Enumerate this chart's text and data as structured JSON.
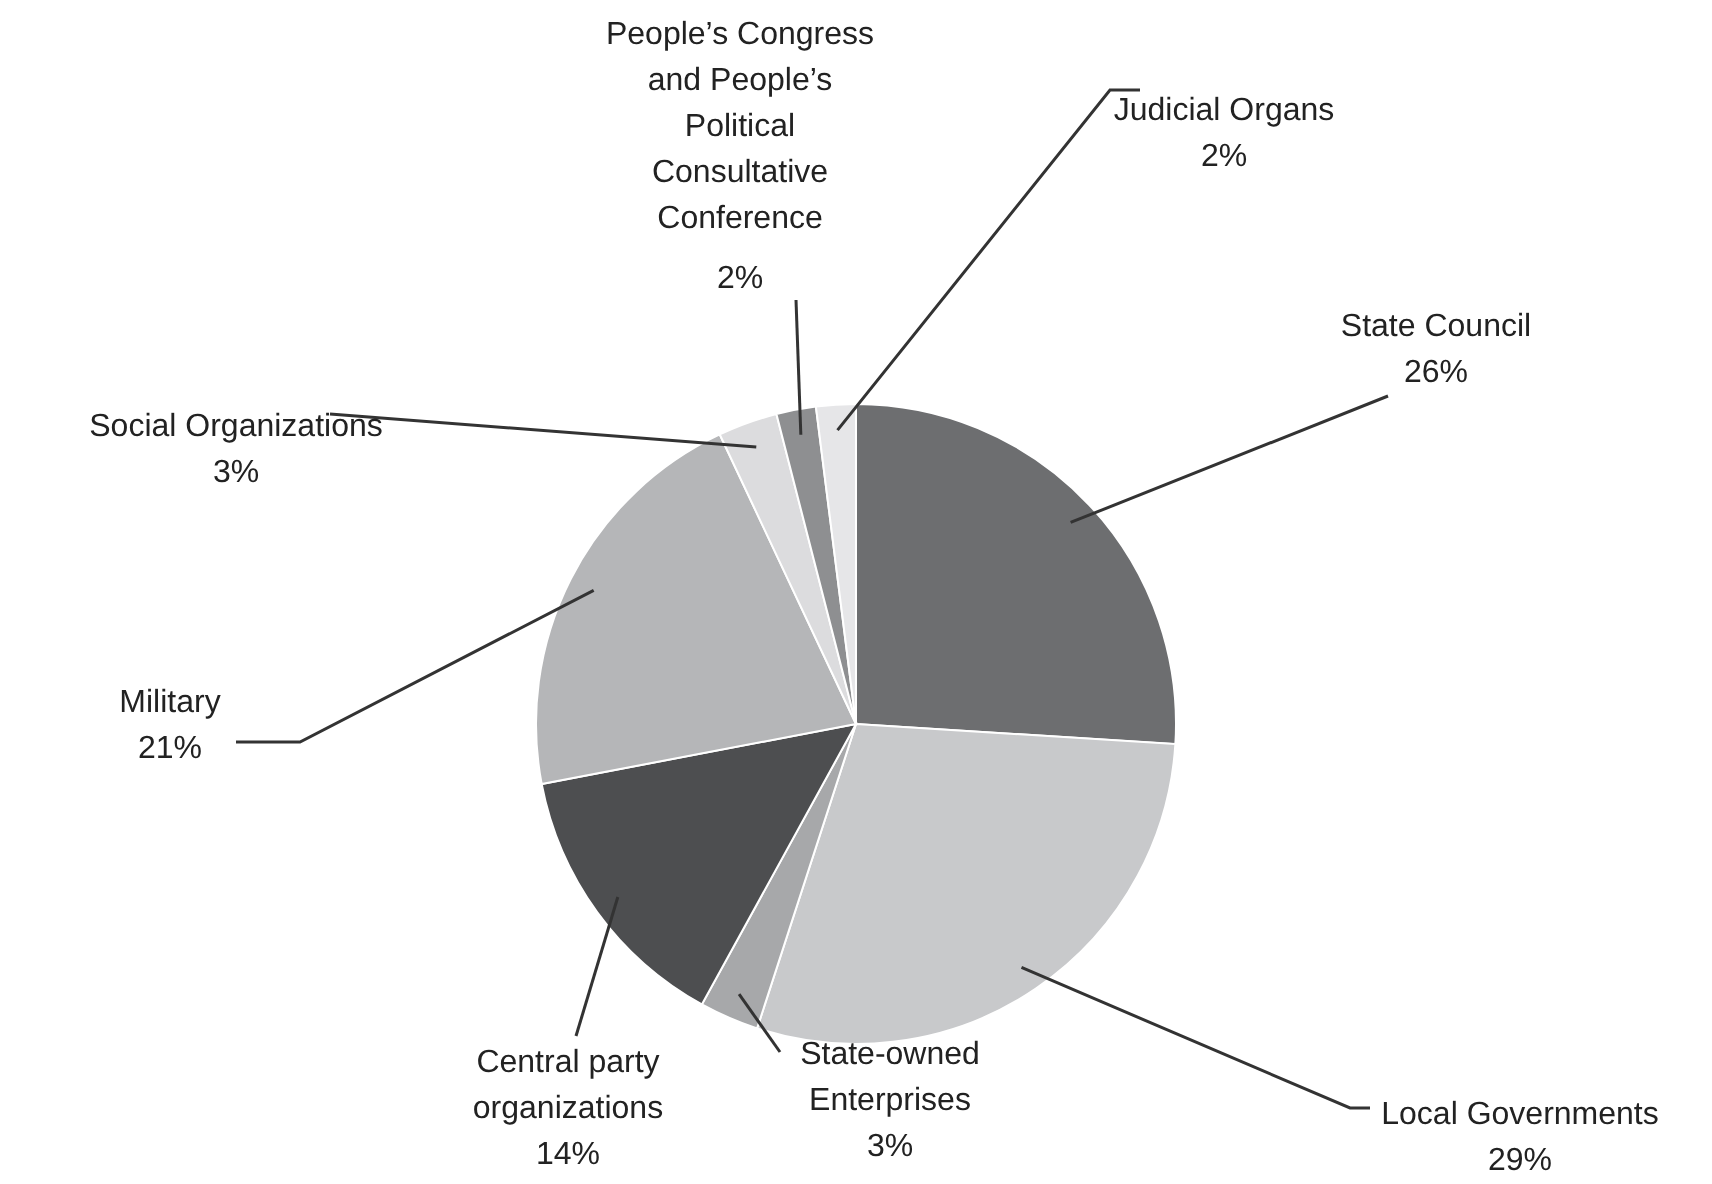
{
  "chart_data": {
    "type": "pie",
    "categories": [
      "State Council",
      "Local Governments",
      "State-owned Enterprises",
      "Central party organizations",
      "Military",
      "Social Organizations",
      "People’s Congress and People’s Political Consultative Conference",
      "Judicial Organs"
    ],
    "values": [
      26,
      29,
      3,
      14,
      21,
      3,
      2,
      2
    ],
    "colors": [
      "#6d6e70",
      "#c8c9cb",
      "#a7a8aa",
      "#4d4e50",
      "#b5b6b8",
      "#dcdcde",
      "#8e8f91",
      "#e6e6e8"
    ],
    "value_labels": [
      "26%",
      "29%",
      "3%",
      "14%",
      "21%",
      "3%",
      "2%",
      "2%"
    ]
  }
}
